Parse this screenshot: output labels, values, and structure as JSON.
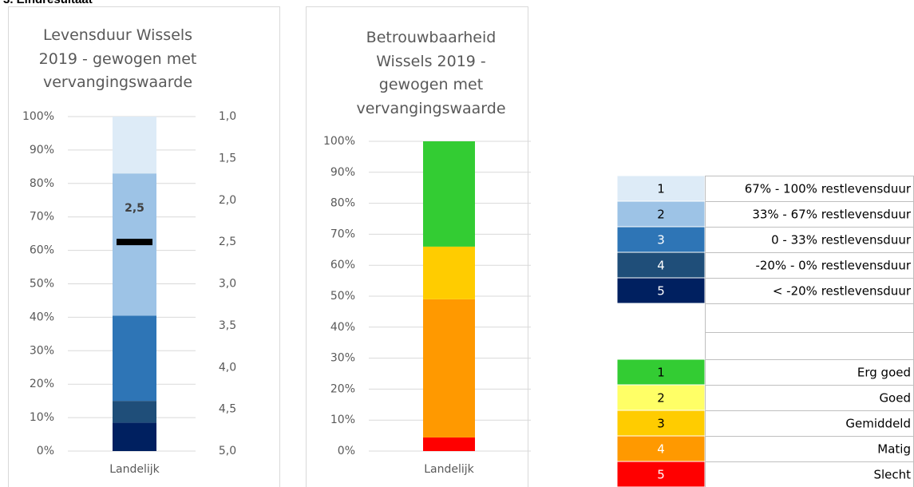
{
  "header": {
    "title": "3. Eindresultaat"
  },
  "chart_data": [
    {
      "type": "stacked_bar",
      "title": "Levensduur Wissels 2019 - gewogen met vervangingswaarde",
      "categories": [
        "Landelijk"
      ],
      "series": [
        {
          "color": "#002060",
          "values": [
            8.5
          ]
        },
        {
          "color": "#1f4e79",
          "values": [
            6.5
          ]
        },
        {
          "color": "#2e75b6",
          "values": [
            25.5
          ]
        },
        {
          "color": "#9dc3e6",
          "values": [
            42.5
          ]
        },
        {
          "color": "#ddebf7",
          "values": [
            17
          ]
        }
      ],
      "ylim": [
        0,
        100
      ],
      "yticks": [
        {
          "value": 0,
          "label": "0%"
        },
        {
          "value": 10,
          "label": "10%"
        },
        {
          "value": 20,
          "label": "20%"
        },
        {
          "value": 30,
          "label": "30%"
        },
        {
          "value": 40,
          "label": "40%"
        },
        {
          "value": 50,
          "label": "50%"
        },
        {
          "value": 60,
          "label": "60%"
        },
        {
          "value": 70,
          "label": "70%"
        },
        {
          "value": 80,
          "label": "80%"
        },
        {
          "value": 90,
          "label": "90%"
        },
        {
          "value": 100,
          "label": "100%"
        }
      ],
      "y2lim": [
        5,
        1
      ],
      "y2ticks": [
        {
          "value": 1,
          "label": "1,0"
        },
        {
          "value": 1.5,
          "label": "1,5"
        },
        {
          "value": 2,
          "label": "2,0"
        },
        {
          "value": 2.5,
          "label": "2,5"
        },
        {
          "value": 3,
          "label": "3,0"
        },
        {
          "value": 3.5,
          "label": "3,5"
        },
        {
          "value": 4,
          "label": "4,0"
        },
        {
          "value": 4.5,
          "label": "4,5"
        },
        {
          "value": 5,
          "label": "5,0"
        }
      ],
      "marker": {
        "value": 2.5,
        "label": "2,5",
        "axis": "y2",
        "color": "#000000"
      },
      "grid": true
    },
    {
      "type": "stacked_bar",
      "title": "Betrouwbaarheid Wissels 2019 - gewogen met vervangingswaarde",
      "categories": [
        "Landelijk"
      ],
      "series": [
        {
          "color": "#ff0000",
          "values": [
            4.4
          ]
        },
        {
          "color": "#ff9900",
          "values": [
            44.6
          ]
        },
        {
          "color": "#ffcc00",
          "values": [
            17
          ]
        },
        {
          "color": "#33cc33",
          "values": [
            34
          ]
        }
      ],
      "ylim": [
        0,
        100
      ],
      "yticks": [
        {
          "value": 0,
          "label": "0%"
        },
        {
          "value": 10,
          "label": "10%"
        },
        {
          "value": 20,
          "label": "20%"
        },
        {
          "value": 30,
          "label": "30%"
        },
        {
          "value": 40,
          "label": "40%"
        },
        {
          "value": 50,
          "label": "50%"
        },
        {
          "value": 60,
          "label": "60%"
        },
        {
          "value": 70,
          "label": "70%"
        },
        {
          "value": 80,
          "label": "80%"
        },
        {
          "value": 90,
          "label": "90%"
        },
        {
          "value": 100,
          "label": "100%"
        }
      ],
      "grid": true
    }
  ],
  "table": {
    "levensduur": [
      {
        "cells": [
          "1",
          "67% - 100% restlevensduur"
        ],
        "color": "#ddebf7",
        "text_color": "#000000"
      },
      {
        "cells": [
          "2",
          "33% - 67% restlevensduur"
        ],
        "color": "#9dc3e6",
        "text_color": "#000000"
      },
      {
        "cells": [
          "3",
          "0 - 33% restlevensduur"
        ],
        "color": "#2e75b6",
        "text_color": "#ffffff"
      },
      {
        "cells": [
          "4",
          "-20% - 0% restlevensduur"
        ],
        "color": "#1f4e79",
        "text_color": "#ffffff"
      },
      {
        "cells": [
          "5",
          "< -20% restlevensduur"
        ],
        "color": "#002060",
        "text_color": "#ffffff"
      }
    ],
    "betrouwbaarheid": [
      {
        "cells": [
          "1",
          "Erg goed"
        ],
        "color": "#33cc33",
        "text_color": "#000000"
      },
      {
        "cells": [
          "2",
          "Goed"
        ],
        "color": "#ffff66",
        "text_color": "#000000"
      },
      {
        "cells": [
          "3",
          "Gemiddeld"
        ],
        "color": "#ffcc00",
        "text_color": "#000000"
      },
      {
        "cells": [
          "4",
          "Matig"
        ],
        "color": "#ff9900",
        "text_color": "#ffffff"
      },
      {
        "cells": [
          "5",
          "Slecht"
        ],
        "color": "#ff0000",
        "text_color": "#ffffff"
      }
    ]
  }
}
